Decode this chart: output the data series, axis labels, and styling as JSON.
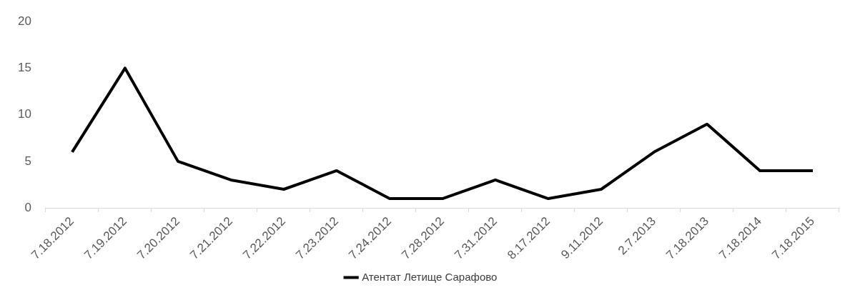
{
  "chart_data": {
    "type": "line",
    "categories": [
      "7.18.2012",
      "7.19.2012",
      "7.20.2012",
      "7.21.2012",
      "7.22.2012",
      "7.23.2012",
      "7.24.2012",
      "7.28.2012",
      "7.31.2012",
      "8.17.2012",
      "9.11.2012",
      "2.7.2013",
      "7.18.2013",
      "7.18.2014",
      "7.18.2015"
    ],
    "series": [
      {
        "name": "Атентат Летище Сарафово",
        "color": "#000000",
        "values": [
          6,
          15,
          5,
          3,
          2,
          4,
          1,
          1,
          3,
          1,
          2,
          6,
          9,
          4,
          4
        ]
      }
    ],
    "ylim": [
      0,
      20
    ],
    "yticks": [
      0,
      5,
      10,
      15,
      20
    ],
    "grid": false,
    "legend": "bottom",
    "marker": "none",
    "line_style": "solid"
  }
}
